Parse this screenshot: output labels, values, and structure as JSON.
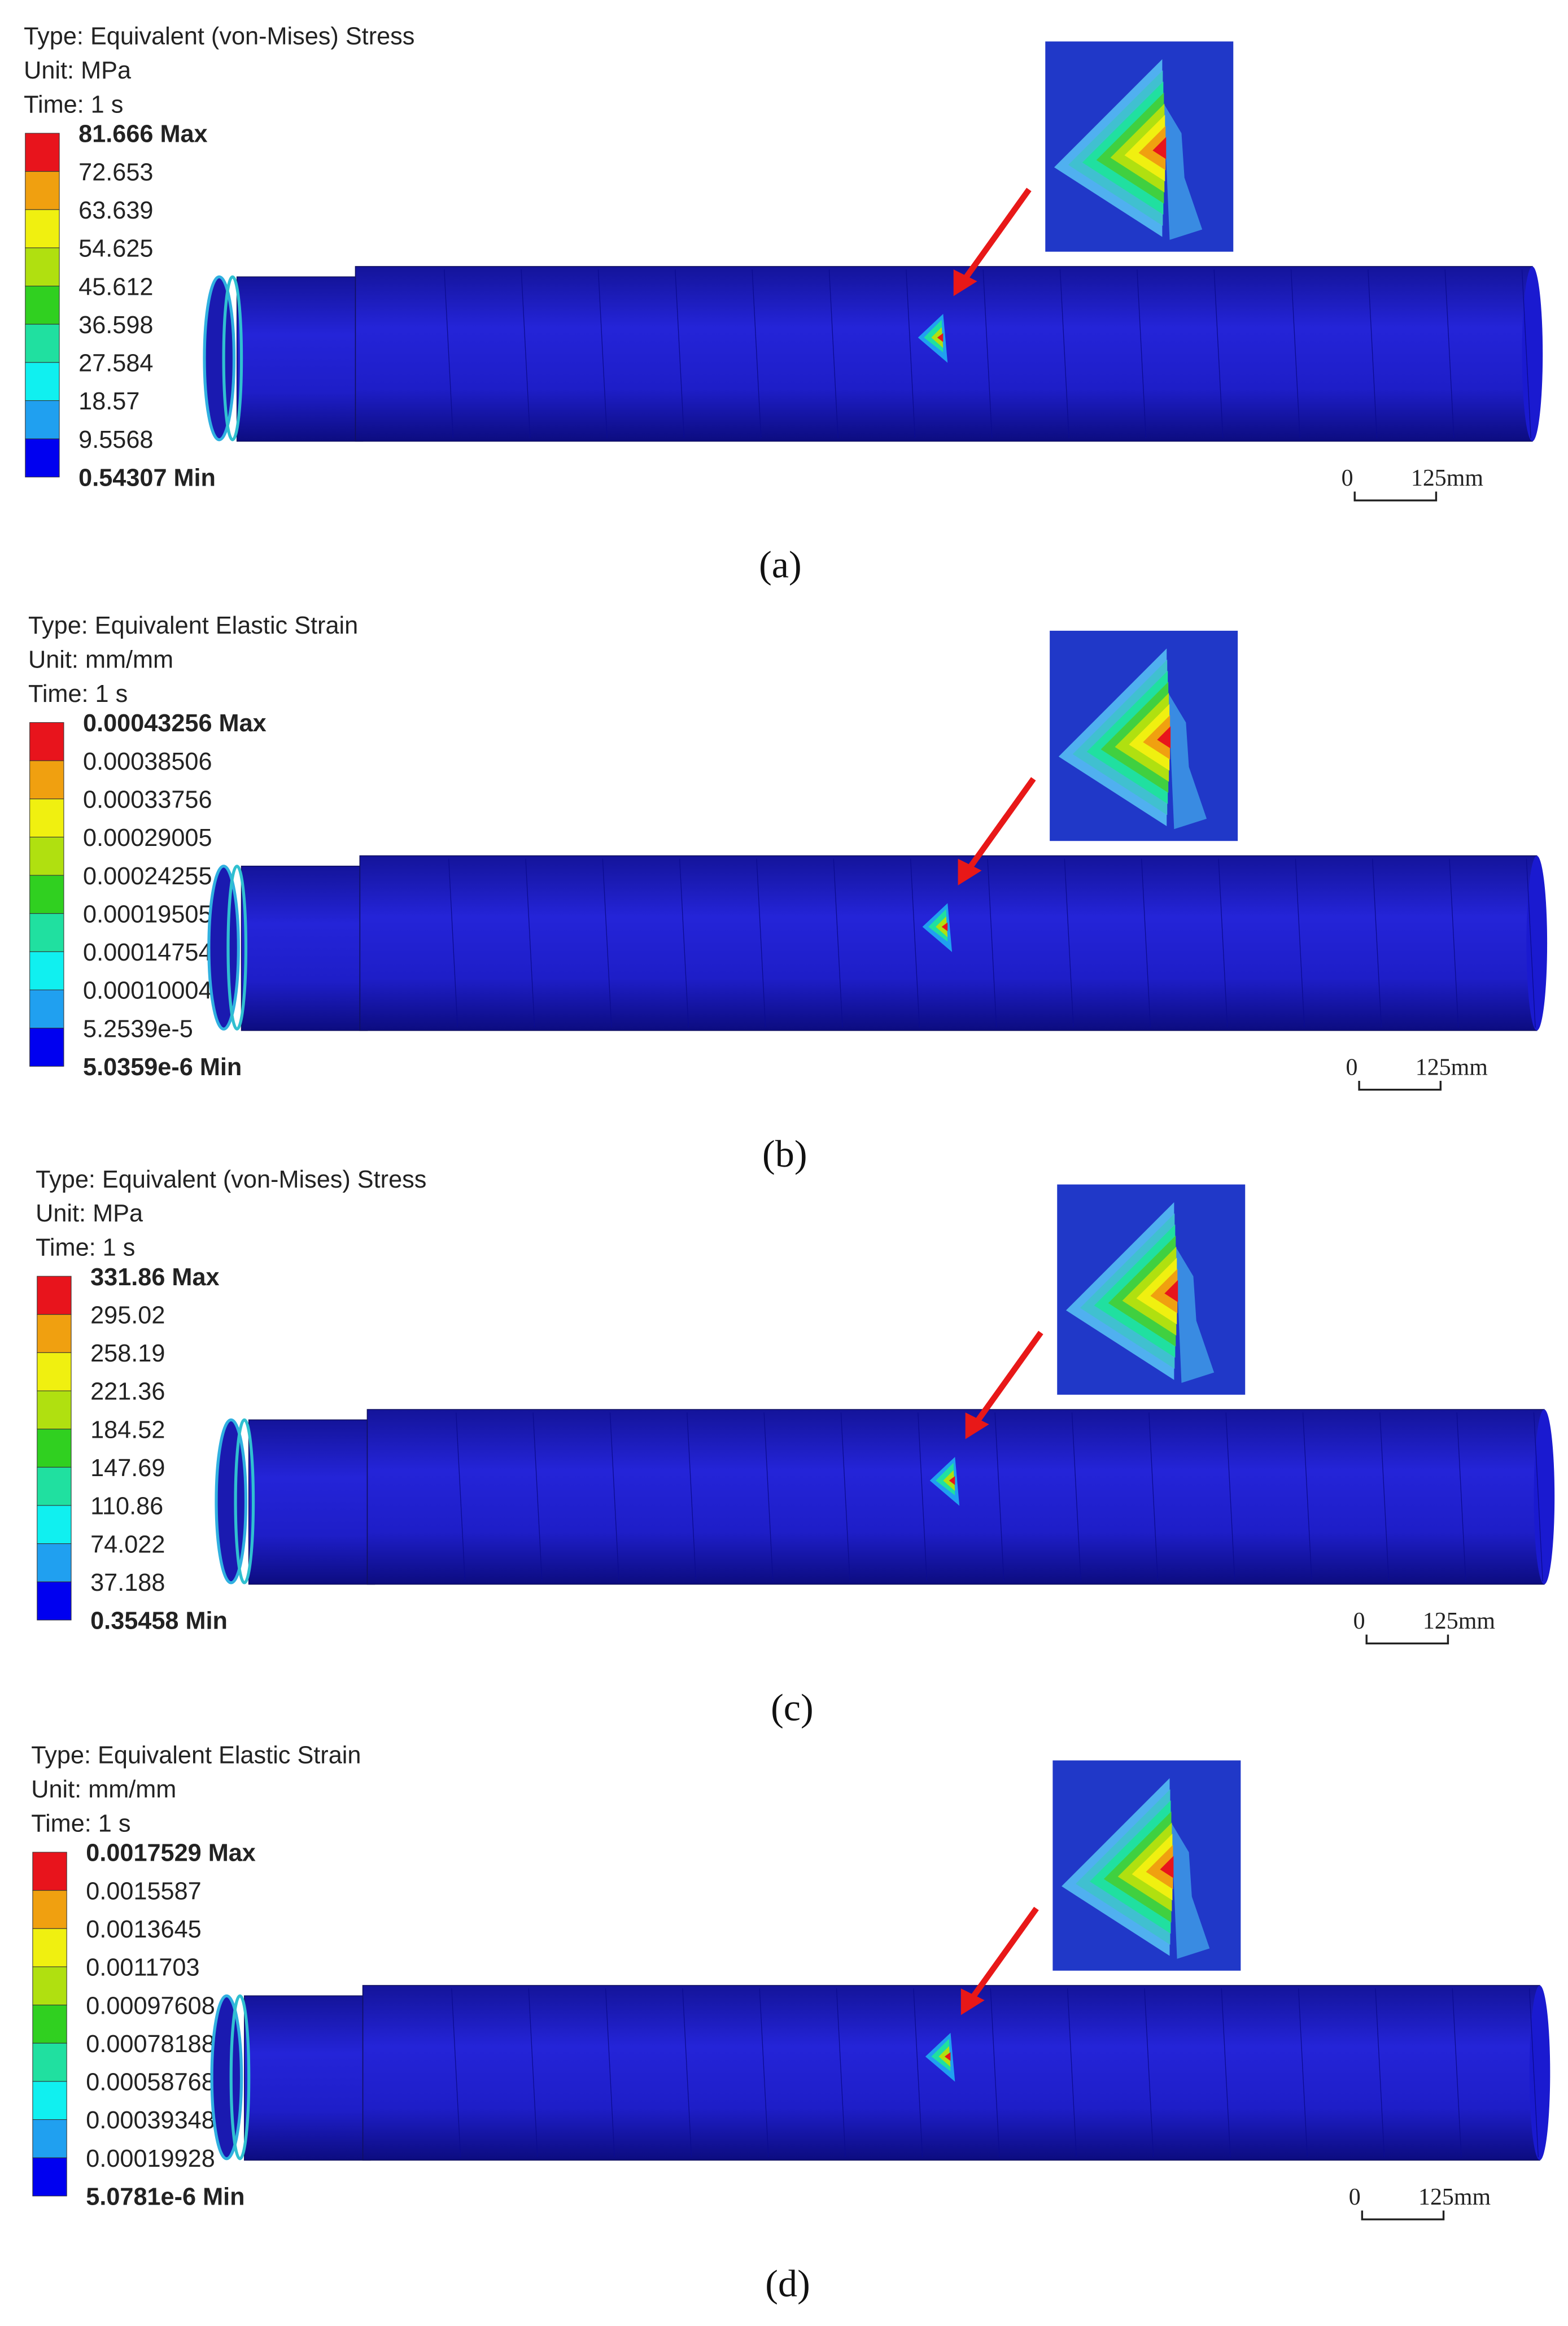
{
  "panels": [
    {
      "type": "Type: Equivalent (von-Mises) Stress",
      "unit": "Unit: MPa",
      "time": "Time: 1 s",
      "legend": [
        "81.666 Max",
        "72.653",
        "63.639",
        "54.625",
        "45.612",
        "36.598",
        "27.584",
        "18.57",
        "9.5568",
        "0.54307 Min"
      ],
      "scale": [
        "0",
        "125mm"
      ],
      "caption": "(a)"
    },
    {
      "type": "Type: Equivalent Elastic Strain",
      "unit": "Unit: mm/mm",
      "time": "Time: 1 s",
      "legend": [
        "0.00043256 Max",
        "0.00038506",
        "0.00033756",
        "0.00029005",
        "0.00024255",
        "0.00019505",
        "0.00014754",
        "0.00010004",
        "5.2539e-5",
        "5.0359e-6 Min"
      ],
      "scale": [
        "0",
        "125mm"
      ],
      "caption": "(b)"
    },
    {
      "type": "Type: Equivalent (von-Mises) Stress",
      "unit": "Unit: MPa",
      "time": "Time: 1 s",
      "legend": [
        "331.86 Max",
        "295.02",
        "258.19",
        "221.36",
        "184.52",
        "147.69",
        "110.86",
        "74.022",
        "37.188",
        "0.35458 Min"
      ],
      "scale": [
        "0",
        "125mm"
      ],
      "caption": "(c)"
    },
    {
      "type": "Type: Equivalent Elastic Strain",
      "unit": "Unit: mm/mm",
      "time": "Time: 1 s",
      "legend": [
        "0.0017529 Max",
        "0.0015587",
        "0.0013645",
        "0.0011703",
        "0.00097608",
        "0.00078188",
        "0.00058768",
        "0.00039348",
        "0.00019928",
        "5.0781e-6 Min"
      ],
      "scale": [
        "0",
        "125mm"
      ],
      "caption": "(d)"
    }
  ],
  "legend_colors": [
    "#e8141c",
    "#f0a010",
    "#f0f010",
    "#b0e010",
    "#30d020",
    "#20e0a0",
    "#10f0f0",
    "#20a0f0",
    "#0000f0"
  ]
}
